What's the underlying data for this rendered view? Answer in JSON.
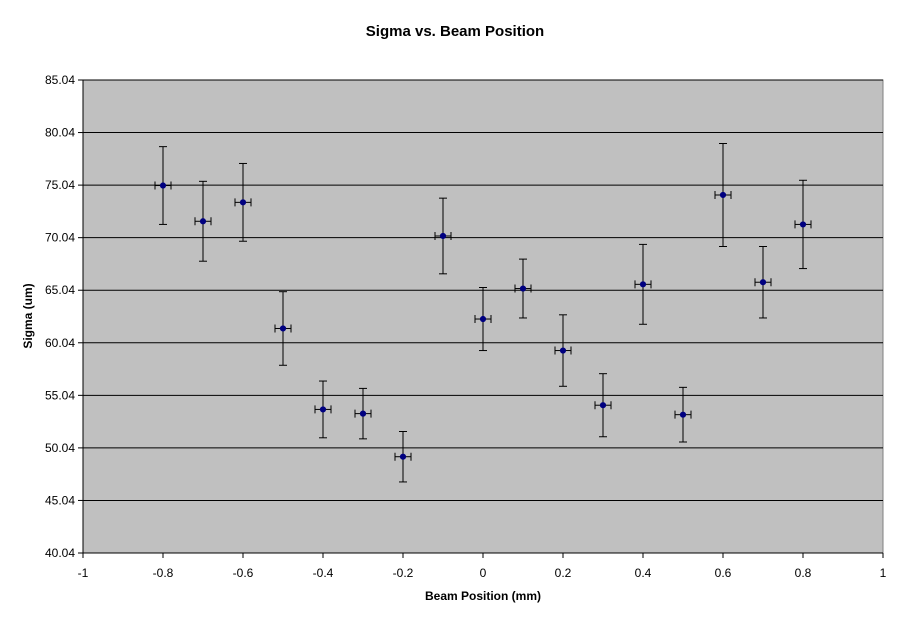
{
  "chart_data": {
    "type": "scatter",
    "title": "Sigma vs. Beam Position",
    "xlabel": "Beam Position (mm)",
    "ylabel": "Sigma (um)",
    "xlim": [
      -1,
      1
    ],
    "ylim": [
      40.04,
      85.04
    ],
    "x_ticks": [
      "-1",
      "-0.8",
      "-0.6",
      "-0.4",
      "-0.2",
      "0",
      "0.2",
      "0.4",
      "0.6",
      "0.8",
      "1"
    ],
    "x_tick_values": [
      -1,
      -0.8,
      -0.6,
      -0.4,
      -0.2,
      0,
      0.2,
      0.4,
      0.6,
      0.8,
      1
    ],
    "y_ticks": [
      "40.04",
      "45.04",
      "50.04",
      "55.04",
      "60.04",
      "65.04",
      "70.04",
      "75.04",
      "80.04",
      "85.04"
    ],
    "y_tick_values": [
      40.04,
      45.04,
      50.04,
      55.04,
      60.04,
      65.04,
      70.04,
      75.04,
      80.04,
      85.04
    ],
    "grid": "horizontal",
    "legend": "none",
    "colors": {
      "plot_bg": "#c0c0c0",
      "marker": "#000080",
      "error_bar": "#000000",
      "grid": "#000000"
    },
    "x_error": 0.02,
    "points": [
      {
        "x": -0.8,
        "y": 75.0,
        "y_err": 3.7
      },
      {
        "x": -0.7,
        "y": 71.6,
        "y_err": 3.8
      },
      {
        "x": -0.6,
        "y": 73.4,
        "y_err": 3.7
      },
      {
        "x": -0.5,
        "y": 61.4,
        "y_err": 3.5
      },
      {
        "x": -0.4,
        "y": 53.7,
        "y_err": 2.7
      },
      {
        "x": -0.3,
        "y": 53.3,
        "y_err": 2.4
      },
      {
        "x": -0.2,
        "y": 49.2,
        "y_err": 2.4
      },
      {
        "x": -0.1,
        "y": 70.2,
        "y_err": 3.6
      },
      {
        "x": 0.0,
        "y": 62.3,
        "y_err": 3.0
      },
      {
        "x": 0.1,
        "y": 65.2,
        "y_err": 2.8
      },
      {
        "x": 0.2,
        "y": 59.3,
        "y_err": 3.4
      },
      {
        "x": 0.3,
        "y": 54.1,
        "y_err": 3.0
      },
      {
        "x": 0.4,
        "y": 65.6,
        "y_err": 3.8
      },
      {
        "x": 0.5,
        "y": 53.2,
        "y_err": 2.6
      },
      {
        "x": 0.6,
        "y": 74.1,
        "y_err": 4.9
      },
      {
        "x": 0.7,
        "y": 65.8,
        "y_err": 3.4
      },
      {
        "x": 0.8,
        "y": 71.3,
        "y_err": 4.2
      }
    ]
  }
}
